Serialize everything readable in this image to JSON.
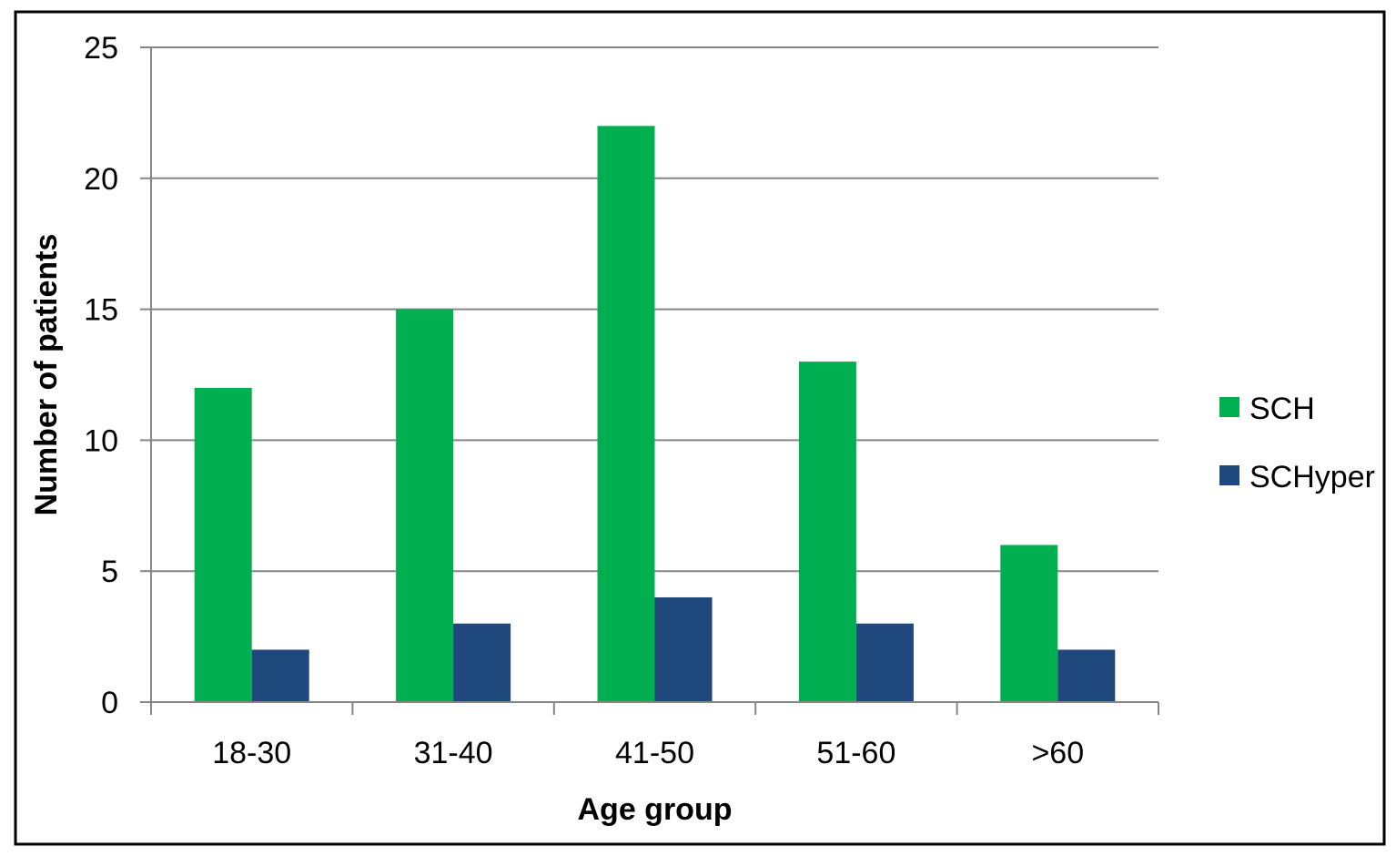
{
  "chart_data": {
    "type": "bar",
    "title": "",
    "xlabel": "Age group",
    "ylabel": "Number of patients",
    "categories": [
      "18-30",
      "31-40",
      "41-50",
      "51-60",
      ">60"
    ],
    "series": [
      {
        "name": "SCH",
        "values": [
          12,
          15,
          22,
          13,
          6
        ],
        "color": "#00b050"
      },
      {
        "name": "SCHyper",
        "values": [
          2,
          3,
          4,
          3,
          2
        ],
        "color": "#1f497d"
      }
    ],
    "ylim": [
      0,
      25
    ],
    "yticks": [
      0,
      5,
      10,
      15,
      20,
      25
    ],
    "grid": true,
    "legend_position": "right"
  }
}
